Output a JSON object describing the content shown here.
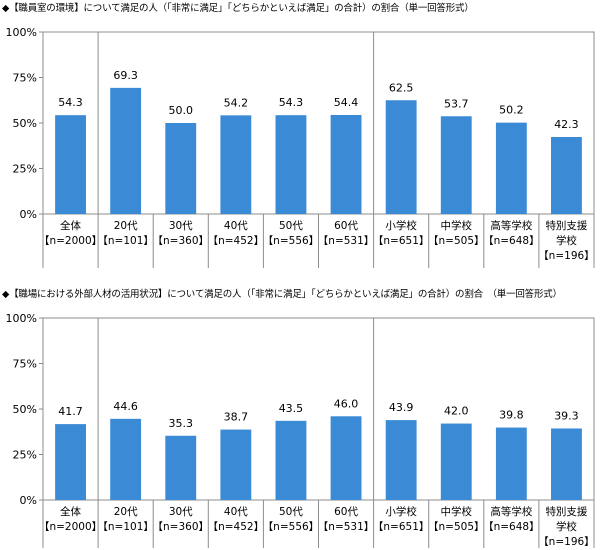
{
  "chart_data": [
    {
      "type": "bar",
      "title": "◆【職員室の環境】について満足の人（「非常に満足」「どちらかといえば満足」の合計）の割合（単一回答形式）",
      "categories": [
        {
          "name": "全体",
          "lines": [
            "全体",
            "【n=2000】"
          ]
        },
        {
          "name": "20代",
          "lines": [
            "20代",
            "【n=101】"
          ]
        },
        {
          "name": "30代",
          "lines": [
            "30代",
            "【n=360】"
          ]
        },
        {
          "name": "40代",
          "lines": [
            "40代",
            "【n=452】"
          ]
        },
        {
          "name": "50代",
          "lines": [
            "50代",
            "【n=556】"
          ]
        },
        {
          "name": "60代",
          "lines": [
            "60代",
            "【n=531】"
          ]
        },
        {
          "name": "小学校",
          "lines": [
            "小学校",
            "【n=651】"
          ]
        },
        {
          "name": "中学校",
          "lines": [
            "中学校",
            "【n=505】"
          ]
        },
        {
          "name": "高等学校",
          "lines": [
            "高等学校",
            "【n=648】"
          ]
        },
        {
          "name": "特別支援学校",
          "lines": [
            "特別支援",
            "学校",
            "【n=196】"
          ]
        }
      ],
      "values": [
        54.3,
        69.3,
        50.0,
        54.2,
        54.3,
        54.4,
        62.5,
        53.7,
        50.2,
        42.3
      ],
      "value_labels": [
        "54.3",
        "69.3",
        "50.0",
        "54.2",
        "54.3",
        "54.4",
        "62.5",
        "53.7",
        "50.2",
        "42.3"
      ],
      "ylim": [
        0,
        100
      ],
      "yticks": [
        "0%",
        "25%",
        "50%",
        "75%",
        "100%"
      ],
      "grid": false,
      "bar_color": "#3b8ad6"
    },
    {
      "type": "bar",
      "title": "◆【職場における外部人材の活用状況】について満足の人（「非常に満足」「どちらかといえば満足」の合計）の割合　（単一回答形式）",
      "categories": [
        {
          "name": "全体",
          "lines": [
            "全体",
            "【n=2000】"
          ]
        },
        {
          "name": "20代",
          "lines": [
            "20代",
            "【n=101】"
          ]
        },
        {
          "name": "30代",
          "lines": [
            "30代",
            "【n=360】"
          ]
        },
        {
          "name": "40代",
          "lines": [
            "40代",
            "【n=452】"
          ]
        },
        {
          "name": "50代",
          "lines": [
            "50代",
            "【n=556】"
          ]
        },
        {
          "name": "60代",
          "lines": [
            "60代",
            "【n=531】"
          ]
        },
        {
          "name": "小学校",
          "lines": [
            "小学校",
            "【n=651】"
          ]
        },
        {
          "name": "中学校",
          "lines": [
            "中学校",
            "【n=505】"
          ]
        },
        {
          "name": "高等学校",
          "lines": [
            "高等学校",
            "【n=648】"
          ]
        },
        {
          "name": "特別支援学校",
          "lines": [
            "特別支援",
            "学校",
            "【n=196】"
          ]
        }
      ],
      "values": [
        41.7,
        44.6,
        35.3,
        38.7,
        43.5,
        46.0,
        43.9,
        42.0,
        39.8,
        39.3
      ],
      "value_labels": [
        "41.7",
        "44.6",
        "35.3",
        "38.7",
        "43.5",
        "46.0",
        "43.9",
        "42.0",
        "39.8",
        "39.3"
      ],
      "ylim": [
        0,
        100
      ],
      "yticks": [
        "0%",
        "25%",
        "50%",
        "75%",
        "100%"
      ],
      "grid": false,
      "bar_color": "#3b8ad6"
    }
  ]
}
